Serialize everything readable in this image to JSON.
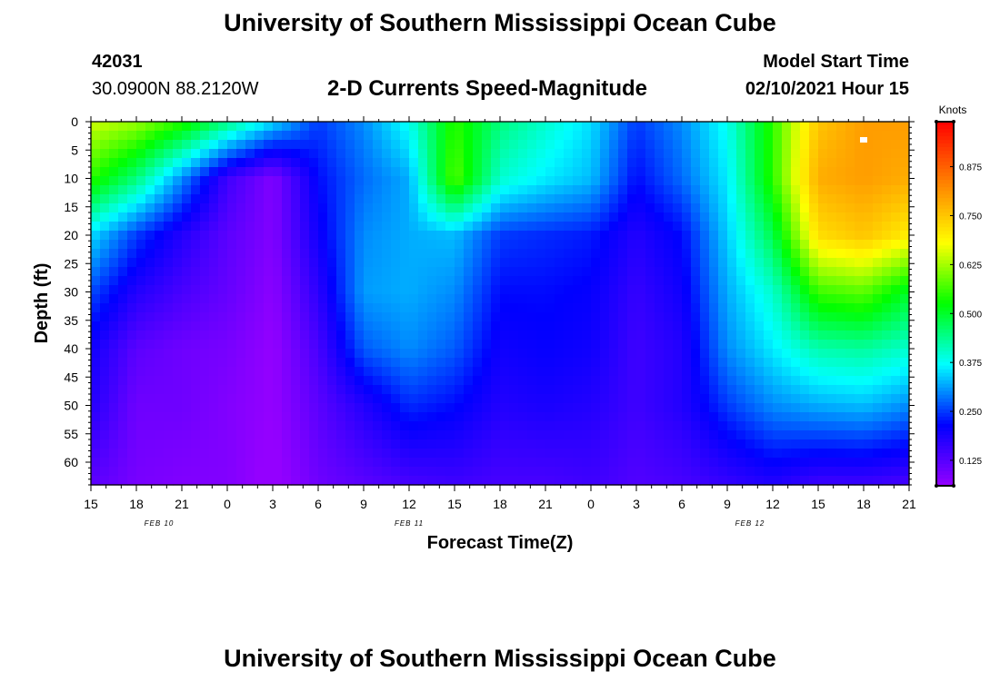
{
  "page": {
    "top_title": "University of Southern Mississippi Ocean Cube",
    "bottom_title": "University of Southern Mississippi Ocean Cube",
    "station_id": "42031",
    "station_coords": "30.0900N 88.2120W",
    "plot_title": "2-D Currents Speed-Magnitude",
    "model_start_label": "Model Start Time",
    "model_start_value": "02/10/2021 Hour 15"
  },
  "colors": {
    "scale": [
      "#9400ff",
      "#0000ff",
      "#00ffff",
      "#00ff00",
      "#ffff00",
      "#ff8000",
      "#ff0000"
    ]
  },
  "chart_data": {
    "type": "heatmap",
    "title": "2-D Currents Speed-Magnitude",
    "xlabel": "Forecast Time(Z)",
    "ylabel": "Depth (ft)",
    "x_range_hours": [
      0,
      54
    ],
    "x_tick_labels": [
      "15",
      "18",
      "21",
      "0",
      "3",
      "6",
      "9",
      "12",
      "15",
      "18",
      "21",
      "0",
      "3",
      "6",
      "9",
      "12",
      "15",
      "18",
      "21"
    ],
    "date_labels": [
      {
        "label": "FEB 10",
        "at_hour": 4.5
      },
      {
        "label": "FEB 11",
        "at_hour": 21
      },
      {
        "label": "FEB 12",
        "at_hour": 43.5
      }
    ],
    "y_range_ft": [
      0,
      64
    ],
    "y_tick_labels": [
      "0",
      "5",
      "10",
      "15",
      "20",
      "25",
      "30",
      "35",
      "40",
      "45",
      "50",
      "55",
      "60"
    ],
    "y_tick_values": [
      0,
      5,
      10,
      15,
      20,
      25,
      30,
      35,
      40,
      45,
      50,
      55,
      60
    ],
    "colorbar": {
      "label": "Knots",
      "range": [
        0.06,
        0.99
      ],
      "tick_labels": [
        "0.125",
        "0.250",
        "0.375",
        "0.500",
        "0.625",
        "0.750",
        "0.875"
      ],
      "tick_values": [
        0.125,
        0.25,
        0.375,
        0.5,
        0.625,
        0.75,
        0.875
      ]
    },
    "speed_grid_knots": {
      "hours": [
        0,
        3,
        6,
        9,
        12,
        15,
        18,
        21,
        24,
        27,
        30,
        33,
        36,
        39,
        42,
        45,
        48,
        51,
        54
      ],
      "depths_ft": [
        0,
        10,
        20,
        30,
        40,
        50,
        64
      ],
      "rows": [
        [
          0.65,
          0.62,
          0.55,
          0.45,
          0.35,
          0.25,
          0.3,
          0.38,
          0.55,
          0.45,
          0.4,
          0.35,
          0.25,
          0.3,
          0.38,
          0.55,
          0.75,
          0.8,
          0.8
        ],
        [
          0.55,
          0.45,
          0.3,
          0.15,
          0.08,
          0.22,
          0.28,
          0.32,
          0.58,
          0.4,
          0.36,
          0.33,
          0.22,
          0.28,
          0.36,
          0.55,
          0.78,
          0.8,
          0.78
        ],
        [
          0.35,
          0.25,
          0.18,
          0.12,
          0.08,
          0.2,
          0.3,
          0.32,
          0.33,
          0.25,
          0.24,
          0.23,
          0.18,
          0.22,
          0.34,
          0.48,
          0.72,
          0.75,
          0.7
        ],
        [
          0.26,
          0.18,
          0.14,
          0.11,
          0.07,
          0.17,
          0.31,
          0.32,
          0.3,
          0.22,
          0.22,
          0.21,
          0.16,
          0.2,
          0.32,
          0.4,
          0.56,
          0.58,
          0.5
        ],
        [
          0.2,
          0.12,
          0.1,
          0.09,
          0.06,
          0.14,
          0.27,
          0.3,
          0.27,
          0.2,
          0.21,
          0.2,
          0.15,
          0.18,
          0.3,
          0.36,
          0.42,
          0.43,
          0.4
        ],
        [
          0.18,
          0.1,
          0.1,
          0.08,
          0.06,
          0.12,
          0.18,
          0.24,
          0.22,
          0.18,
          0.19,
          0.18,
          0.15,
          0.18,
          0.25,
          0.3,
          0.32,
          0.33,
          0.3
        ],
        [
          0.12,
          0.09,
          0.08,
          0.08,
          0.05,
          0.1,
          0.12,
          0.14,
          0.15,
          0.14,
          0.14,
          0.15,
          0.13,
          0.14,
          0.16,
          0.18,
          0.15,
          0.15,
          0.14
        ]
      ]
    }
  }
}
